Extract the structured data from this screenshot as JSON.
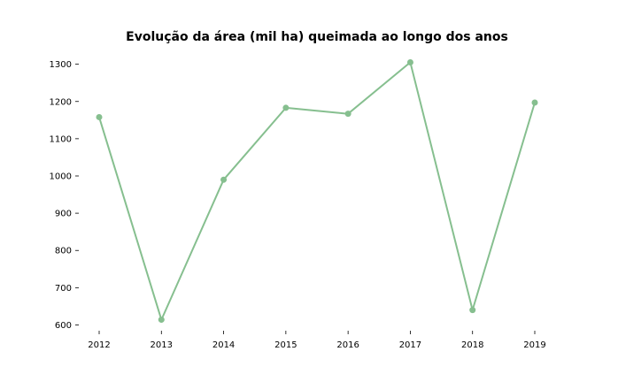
{
  "chart_data": {
    "type": "line",
    "title": "Evolução da área (mil ha) queimada ao longo dos anos",
    "xlabel": "",
    "ylabel": "",
    "categories": [
      "2012",
      "2013",
      "2014",
      "2015",
      "2016",
      "2017",
      "2018",
      "2019"
    ],
    "series": [
      {
        "values": [
          1158,
          614,
          990,
          1183,
          1167,
          1305,
          640,
          1197
        ]
      }
    ],
    "ylim": [
      575,
      1330
    ],
    "yticks": [
      600,
      700,
      800,
      900,
      1000,
      1100,
      1200,
      1300
    ],
    "grid": false,
    "legend": "none",
    "line_color": "#86bf8f"
  }
}
